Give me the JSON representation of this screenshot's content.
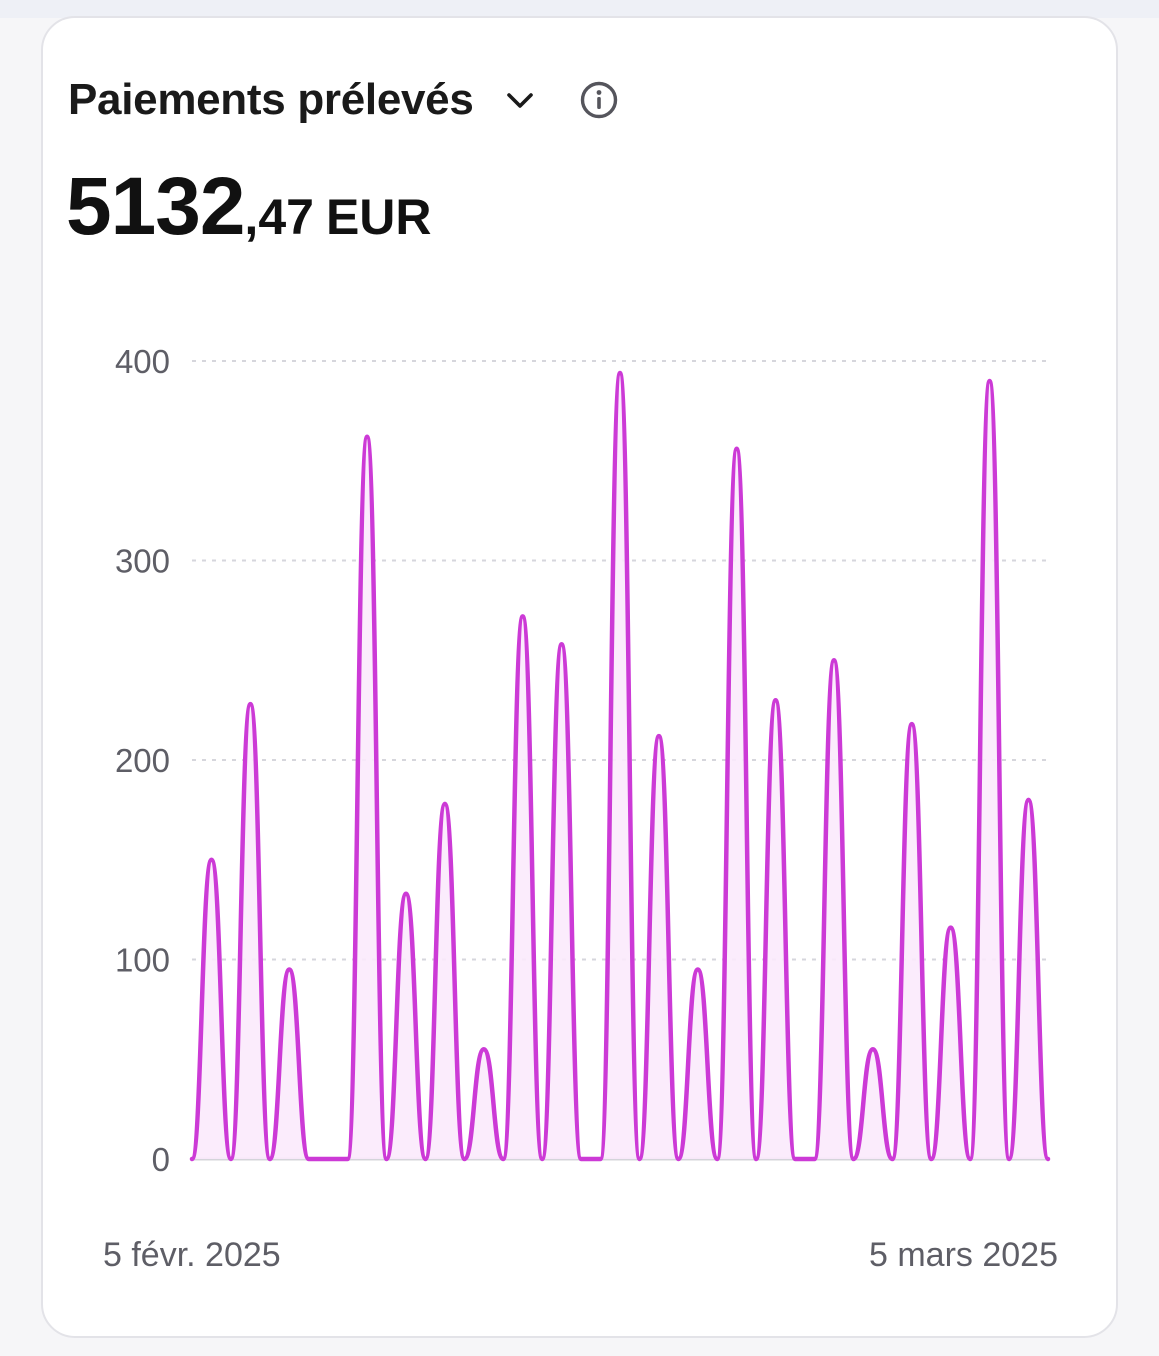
{
  "header": {
    "title": "Paiements prélevés",
    "dropdown_icon": "chevron-down-icon",
    "info_icon": "info-icon"
  },
  "amount": {
    "integer": "5132",
    "decimal": ",47",
    "currency": "EUR"
  },
  "colors": {
    "line": "#cc3ad6",
    "fill": "#fbeafc",
    "grid": "#d6d6dc",
    "baseline": "#d4d4da"
  },
  "chart_data": {
    "type": "area",
    "title": "Paiements prélevés",
    "x_start_label": "5 févr. 2025",
    "x_end_label": "5 mars 2025",
    "ylim": [
      0,
      400
    ],
    "yticks": [
      0,
      100,
      200,
      300,
      400
    ],
    "grid": true,
    "series": [
      {
        "values": [
          0,
          150,
          0,
          228,
          0,
          95,
          0,
          0,
          0,
          362,
          0,
          133,
          0,
          178,
          0,
          55,
          0,
          272,
          0,
          258,
          0,
          0,
          394,
          0,
          212,
          0,
          95,
          0,
          356,
          0,
          230,
          0,
          0,
          250,
          0,
          55,
          0,
          218,
          0,
          116,
          0,
          390,
          0,
          180,
          0
        ]
      }
    ]
  }
}
